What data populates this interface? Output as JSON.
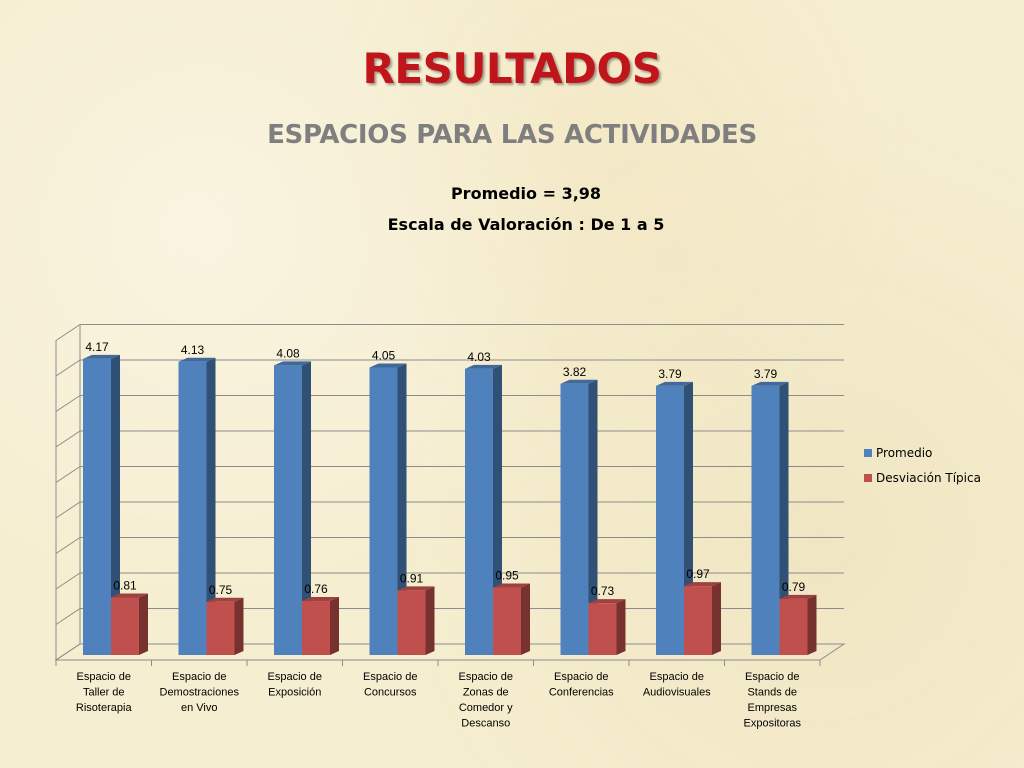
{
  "slide": {
    "title": "RESULTADOS",
    "subtitle": "ESPACIOS PARA LAS ACTIVIDADES",
    "stat_line_1": "Promedio = 3,98",
    "stat_line_2": "Escala de Valoración : De 1 a 5"
  },
  "chart_data": {
    "type": "bar",
    "title": "",
    "xlabel": "",
    "ylabel": "",
    "ylim": [
      0,
      4.5
    ],
    "grid": true,
    "legend_position": "right",
    "categories": [
      [
        "Espacio de",
        "Taller de",
        "Risoterapia"
      ],
      [
        "Espacio de",
        "Demostraciones",
        "en Vivo"
      ],
      [
        "Espacio de",
        "Exposición"
      ],
      [
        "Espacio de",
        "Concursos"
      ],
      [
        "Espacio de",
        "Zonas de",
        "Comedor y",
        "Descanso"
      ],
      [
        "Espacio de",
        "Conferencias"
      ],
      [
        "Espacio de",
        "Audiovisuales"
      ],
      [
        "Espacio de",
        "Stands de",
        "Empresas",
        "Expositoras"
      ]
    ],
    "series": [
      {
        "name": "Promedio",
        "color": "#4f81bd",
        "values": [
          4.17,
          4.13,
          4.08,
          4.05,
          4.03,
          3.82,
          3.79,
          3.79
        ],
        "labels": [
          "4.17",
          "4.13",
          "4.08",
          "4.05",
          "4.03",
          "3.82",
          "3.79",
          "3.79"
        ]
      },
      {
        "name": "Desviación Típica",
        "color": "#c0504d",
        "values": [
          0.81,
          0.75,
          0.76,
          0.91,
          0.95,
          0.73,
          0.97,
          0.79
        ],
        "labels": [
          "0.81",
          "0.75",
          "0.76",
          "0.91",
          "0.95",
          "0.73",
          "0.97",
          "0.79"
        ]
      }
    ]
  }
}
